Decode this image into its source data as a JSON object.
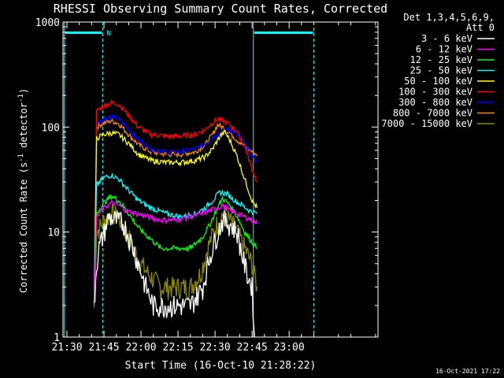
{
  "chart_data": {
    "type": "line",
    "title": "RHESSI Observing Summary Count Rates, Corrected",
    "xlabel": "Start Time (16-Oct-10 21:28:22)",
    "ylabel_main": "Corrected Count Rate (s",
    "ylabel_sup1": "-1",
    "ylabel_mid": " detector",
    "ylabel_sup2": "-1",
    "ylabel_end": ")",
    "yscale": "log",
    "ylim": [
      1,
      1000
    ],
    "xlim_minutes_after_2130": [
      -1.6,
      126
    ],
    "x_ticks": [
      {
        "label": "21:30",
        "min": 0
      },
      {
        "label": "21:45",
        "min": 15
      },
      {
        "label": "22:00",
        "min": 30
      },
      {
        "label": "22:15",
        "min": 45
      },
      {
        "label": "22:30",
        "min": 60
      },
      {
        "label": "22:45",
        "min": 75
      },
      {
        "label": "23:00",
        "min": 90
      }
    ],
    "y_ticks": [
      {
        "label": "1",
        "value": 1
      },
      {
        "label": "10",
        "value": 10
      },
      {
        "label": "100",
        "value": 100
      },
      {
        "label": "1000",
        "value": 1000
      }
    ],
    "legend_header": [
      "Det 1,3,4,5,6,9,",
      "Att 0"
    ],
    "legend_placement": "right",
    "flag_label": "N",
    "timestamp": "16-Oct-2021 17:22",
    "series": [
      {
        "name": "3 - 6 keV",
        "color": "#ffffff",
        "points": [
          [
            11,
            2
          ],
          [
            12,
            5
          ],
          [
            13,
            7
          ],
          [
            15,
            10
          ],
          [
            17,
            14
          ],
          [
            20,
            13
          ],
          [
            23,
            12
          ],
          [
            26,
            8
          ],
          [
            29,
            5
          ],
          [
            32,
            3
          ],
          [
            35,
            2
          ],
          [
            40,
            2
          ],
          [
            45,
            2
          ],
          [
            50,
            2
          ],
          [
            55,
            3
          ],
          [
            58,
            6
          ],
          [
            61,
            10
          ],
          [
            63,
            13
          ],
          [
            66,
            12
          ],
          [
            69,
            10
          ],
          [
            71,
            6
          ],
          [
            73,
            4
          ],
          [
            75,
            3
          ],
          [
            76,
            1
          ]
        ]
      },
      {
        "name": "6 - 12 keV",
        "color": "#ff00ff",
        "points": [
          [
            11,
            2
          ],
          [
            12,
            14
          ],
          [
            15,
            17
          ],
          [
            18,
            19
          ],
          [
            21,
            18
          ],
          [
            24,
            16
          ],
          [
            28,
            15
          ],
          [
            33,
            14
          ],
          [
            38,
            13
          ],
          [
            44,
            13
          ],
          [
            50,
            14
          ],
          [
            55,
            15
          ],
          [
            58,
            16
          ],
          [
            61,
            17
          ],
          [
            63,
            18
          ],
          [
            66,
            16
          ],
          [
            69,
            15
          ],
          [
            72,
            14
          ],
          [
            75,
            13
          ],
          [
            77,
            12
          ]
        ]
      },
      {
        "name": "12 - 25 keV",
        "color": "#00ff00",
        "points": [
          [
            11,
            2
          ],
          [
            12,
            15
          ],
          [
            15,
            19
          ],
          [
            18,
            22
          ],
          [
            21,
            20
          ],
          [
            25,
            15
          ],
          [
            29,
            11
          ],
          [
            33,
            9
          ],
          [
            38,
            7
          ],
          [
            44,
            7
          ],
          [
            50,
            7
          ],
          [
            55,
            9
          ],
          [
            58,
            12
          ],
          [
            61,
            17
          ],
          [
            63,
            21
          ],
          [
            66,
            18
          ],
          [
            69,
            14
          ],
          [
            72,
            10
          ],
          [
            75,
            8
          ],
          [
            77,
            7
          ]
        ]
      },
      {
        "name": "25 - 50 keV",
        "color": "#00ffff",
        "points": [
          [
            11,
            2
          ],
          [
            12,
            28
          ],
          [
            15,
            33
          ],
          [
            18,
            35
          ],
          [
            21,
            32
          ],
          [
            25,
            25
          ],
          [
            29,
            20
          ],
          [
            34,
            17
          ],
          [
            40,
            15
          ],
          [
            46,
            14
          ],
          [
            52,
            15
          ],
          [
            56,
            17
          ],
          [
            59,
            20
          ],
          [
            62,
            24
          ],
          [
            65,
            23
          ],
          [
            68,
            20
          ],
          [
            71,
            18
          ],
          [
            74,
            16
          ],
          [
            77,
            15
          ]
        ]
      },
      {
        "name": "50 - 100 keV",
        "color": "#ffff00",
        "points": [
          [
            11,
            2
          ],
          [
            12,
            78
          ],
          [
            15,
            85
          ],
          [
            18,
            88
          ],
          [
            21,
            85
          ],
          [
            25,
            70
          ],
          [
            29,
            55
          ],
          [
            34,
            48
          ],
          [
            40,
            46
          ],
          [
            46,
            46
          ],
          [
            52,
            48
          ],
          [
            56,
            52
          ],
          [
            59,
            62
          ],
          [
            62,
            82
          ],
          [
            64,
            90
          ],
          [
            66,
            75
          ],
          [
            69,
            52
          ],
          [
            72,
            32
          ],
          [
            75,
            20
          ],
          [
            77,
            17
          ]
        ]
      },
      {
        "name": "100 - 300 keV",
        "color": "#ff0000",
        "points": [
          [
            11,
            2
          ],
          [
            12,
            140
          ],
          [
            15,
            160
          ],
          [
            18,
            170
          ],
          [
            21,
            165
          ],
          [
            25,
            130
          ],
          [
            29,
            100
          ],
          [
            34,
            85
          ],
          [
            40,
            82
          ],
          [
            46,
            82
          ],
          [
            52,
            85
          ],
          [
            56,
            95
          ],
          [
            59,
            110
          ],
          [
            61,
            120
          ],
          [
            63,
            115
          ],
          [
            66,
            105
          ],
          [
            69,
            90
          ],
          [
            72,
            65
          ],
          [
            75,
            40
          ],
          [
            77,
            30
          ]
        ]
      },
      {
        "name": "300 - 800 keV",
        "color": "#0000ff",
        "points": [
          [
            11,
            2
          ],
          [
            12,
            110
          ],
          [
            15,
            120
          ],
          [
            18,
            125
          ],
          [
            21,
            118
          ],
          [
            25,
            95
          ],
          [
            29,
            75
          ],
          [
            34,
            62
          ],
          [
            40,
            58
          ],
          [
            46,
            58
          ],
          [
            52,
            62
          ],
          [
            56,
            70
          ],
          [
            59,
            80
          ],
          [
            62,
            88
          ],
          [
            65,
            95
          ],
          [
            68,
            90
          ],
          [
            71,
            75
          ],
          [
            74,
            58
          ],
          [
            77,
            47
          ]
        ]
      },
      {
        "name": "800 - 7000 keV",
        "color": "#ff8800",
        "points": [
          [
            11,
            2
          ],
          [
            12,
            100
          ],
          [
            15,
            110
          ],
          [
            18,
            115
          ],
          [
            21,
            108
          ],
          [
            25,
            85
          ],
          [
            29,
            68
          ],
          [
            34,
            58
          ],
          [
            40,
            55
          ],
          [
            46,
            55
          ],
          [
            52,
            58
          ],
          [
            56,
            68
          ],
          [
            59,
            85
          ],
          [
            61,
            105
          ],
          [
            63,
            100
          ],
          [
            66,
            88
          ],
          [
            69,
            75
          ],
          [
            72,
            65
          ],
          [
            75,
            58
          ],
          [
            77,
            55
          ]
        ]
      },
      {
        "name": "7000 - 15000 keV",
        "color": "#888800",
        "points": [
          [
            11,
            2
          ],
          [
            12,
            10
          ],
          [
            15,
            13
          ],
          [
            18,
            15
          ],
          [
            21,
            14
          ],
          [
            24,
            10
          ],
          [
            27,
            7
          ],
          [
            30,
            5
          ],
          [
            33,
            4
          ],
          [
            38,
            3
          ],
          [
            44,
            3
          ],
          [
            50,
            3
          ],
          [
            54,
            4
          ],
          [
            57,
            7
          ],
          [
            60,
            11
          ],
          [
            63,
            15
          ],
          [
            66,
            13
          ],
          [
            69,
            10
          ],
          [
            72,
            7
          ],
          [
            75,
            5
          ],
          [
            77,
            3
          ]
        ]
      }
    ]
  }
}
